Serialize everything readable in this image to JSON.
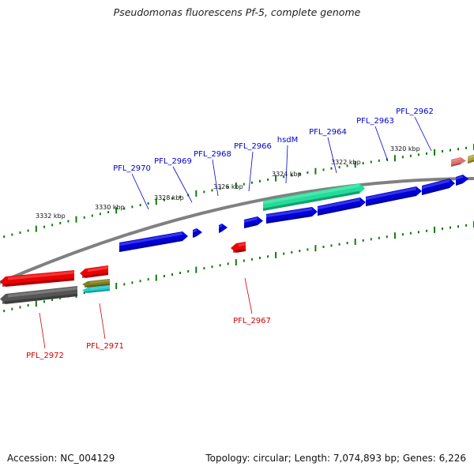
{
  "title": "Pseudomonas fluorescens Pf-5, complete genome",
  "footer": {
    "accession_text": "Accession: NC_004129",
    "summary_text": "Topology: circular; Length: 7,074,893 bp; Genes: 6,226"
  },
  "colors": {
    "forward_label": "#0000cc",
    "reverse_label": "#cc0000",
    "tick": "#117a11",
    "backbone": "#808080",
    "blue_gene": "#0000dd",
    "red_gene": "#ee0000",
    "teal_gene": "#22dd99",
    "gray_gene": "#555555",
    "olive_gene": "#808020",
    "cyan_gene": "#22cccc",
    "pink_gene": "#e07070",
    "tan_gene": "#b0a040"
  },
  "kbp_labels": [
    "3332 kbp",
    "3330 kbp",
    "3328 kbp",
    "3326 kbp",
    "3324 kbp",
    "3322 kbp",
    "3320 kbp"
  ],
  "genes_forward": [
    "PFL_2970",
    "PFL_2969",
    "PFL_2968",
    "PFL_2966",
    "hsdM",
    "PFL_2964",
    "PFL_2963",
    "PFL_2962"
  ],
  "genes_reverse": [
    "PFL_2972",
    "PFL_2971",
    "PFL_2967"
  ]
}
